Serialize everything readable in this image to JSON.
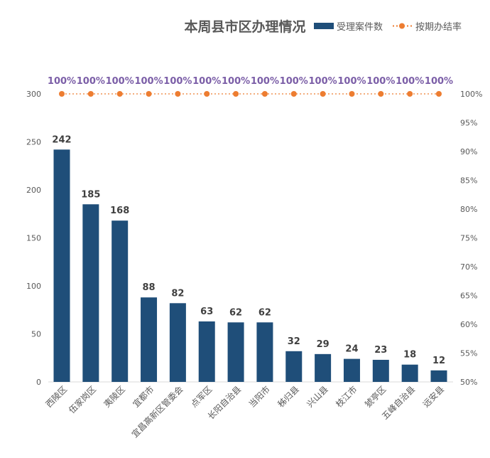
{
  "chart_data": {
    "type": "bar+line",
    "title": "本周县市区办理情况",
    "categories": [
      "西陵区",
      "伍家岗区",
      "夷陵区",
      "宜都市",
      "宜昌高新区管委会",
      "点军区",
      "长阳自治县",
      "当阳市",
      "秭归县",
      "兴山县",
      "枝江市",
      "猇亭区",
      "五峰自治县",
      "远安县"
    ],
    "series": [
      {
        "name": "受理案件数",
        "type": "bar",
        "axis": "left",
        "color": "#1F4E79",
        "values": [
          242,
          185,
          168,
          88,
          82,
          63,
          62,
          62,
          32,
          29,
          24,
          23,
          18,
          12
        ]
      },
      {
        "name": "按期办结率",
        "type": "line",
        "axis": "right",
        "color": "#ED7D31",
        "values": [
          100,
          100,
          100,
          100,
          100,
          100,
          100,
          100,
          100,
          100,
          100,
          100,
          100,
          100
        ],
        "labels": [
          "100%",
          "100%",
          "100%",
          "100%",
          "100%",
          "100%",
          "100%",
          "100%",
          "100%",
          "100%",
          "100%",
          "100%",
          "100%",
          "100%"
        ],
        "label_color": "#7B5EA7"
      }
    ],
    "left_axis": {
      "ylim": [
        0,
        300
      ],
      "ticks": [
        "0",
        "50",
        "100",
        "150",
        "200",
        "250",
        "300"
      ]
    },
    "right_axis": {
      "ylim": [
        50,
        100
      ],
      "ticks": [
        "50%",
        "55%",
        "60%",
        "65%",
        "70%",
        "75%",
        "80%",
        "85%",
        "90%",
        "95%",
        "100%"
      ]
    },
    "grid": false,
    "legend": "top-right"
  }
}
